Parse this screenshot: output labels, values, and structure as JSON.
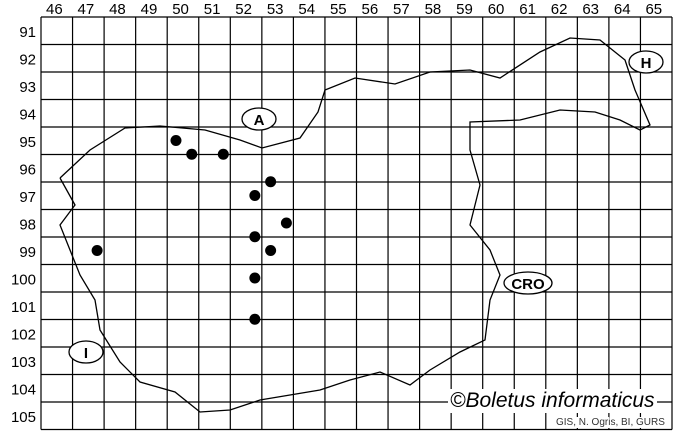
{
  "map": {
    "columns": [
      "46",
      "47",
      "48",
      "49",
      "50",
      "51",
      "52",
      "53",
      "54",
      "55",
      "56",
      "57",
      "58",
      "59",
      "60",
      "61",
      "62",
      "63",
      "64",
      "65"
    ],
    "rows": [
      "91",
      "92",
      "93",
      "94",
      "95",
      "96",
      "97",
      "98",
      "99",
      "100",
      "101",
      "102",
      "103",
      "104",
      "105"
    ],
    "country_labels": [
      {
        "text": "A",
        "name": "austria-label"
      },
      {
        "text": "H",
        "name": "hungary-label"
      },
      {
        "text": "CRO",
        "name": "croatia-label"
      },
      {
        "text": "I",
        "name": "italy-label"
      }
    ],
    "occurrence_cells": [
      {
        "col": 50,
        "row": 95.5
      },
      {
        "col": 50.5,
        "row": 96
      },
      {
        "col": 51.5,
        "row": 96
      },
      {
        "col": 53,
        "row": 97
      },
      {
        "col": 52.5,
        "row": 97.5
      },
      {
        "col": 53.5,
        "row": 98.5
      },
      {
        "col": 52.5,
        "row": 99
      },
      {
        "col": 53,
        "row": 99.5
      },
      {
        "col": 52.5,
        "row": 100.5
      },
      {
        "col": 47.5,
        "row": 99.5
      },
      {
        "col": 52.5,
        "row": 102
      }
    ],
    "dot_color": "#000000"
  },
  "credit": "©Boletus informaticus",
  "source": "GIS, N. Ogris, BI, GURS"
}
